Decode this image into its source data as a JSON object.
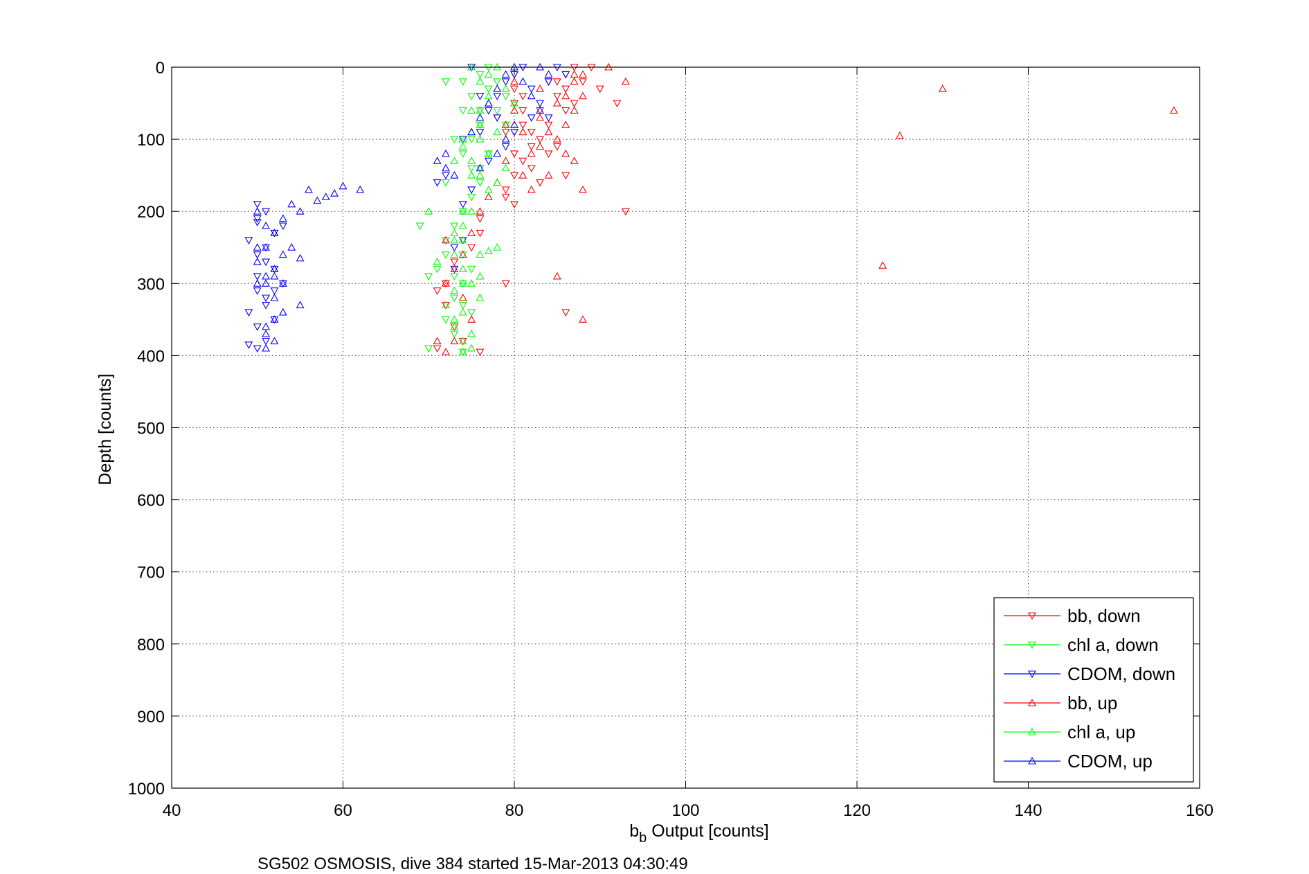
{
  "chart_data": {
    "type": "scatter",
    "title": "",
    "xlabel": {
      "main": "b",
      "sub": "b",
      "rest": " Output [counts]"
    },
    "ylabel": "Depth [counts]",
    "caption": "SG502 OSMOSIS, dive 384 started 15-Mar-2013 04:30:49",
    "xlim": [
      40,
      160
    ],
    "ylim": [
      0,
      1000
    ],
    "y_reversed": true,
    "grid": true,
    "legend_position": "bottom-right",
    "x_ticks": [
      "40",
      "60",
      "80",
      "100",
      "120",
      "140",
      "160"
    ],
    "y_ticks": [
      "0",
      "100",
      "200",
      "300",
      "400",
      "500",
      "600",
      "700",
      "800",
      "900",
      "1000"
    ],
    "series": [
      {
        "name": "bb, down",
        "color": "#ff0000",
        "marker": "triangle-down",
        "points": [
          [
            80,
            10
          ],
          [
            80,
            30
          ],
          [
            80,
            50
          ],
          [
            81,
            60
          ],
          [
            81,
            80
          ],
          [
            82,
            90
          ],
          [
            83,
            100
          ],
          [
            82,
            110
          ],
          [
            81,
            130
          ],
          [
            80,
            150
          ],
          [
            79,
            170
          ],
          [
            80,
            190
          ],
          [
            84,
            20
          ],
          [
            85,
            40
          ],
          [
            86,
            30
          ],
          [
            86,
            10
          ],
          [
            87,
            0
          ],
          [
            88,
            20
          ],
          [
            89,
            0
          ],
          [
            90,
            30
          ],
          [
            92,
            50
          ],
          [
            93,
            200
          ],
          [
            84,
            80
          ],
          [
            85,
            110
          ],
          [
            86,
            150
          ],
          [
            84,
            120
          ],
          [
            83,
            60
          ],
          [
            81,
            40
          ],
          [
            79,
            180
          ],
          [
            76,
            210
          ],
          [
            76,
            230
          ],
          [
            75,
            250
          ],
          [
            73,
            270
          ],
          [
            72,
            300
          ],
          [
            71,
            310
          ],
          [
            72,
            330
          ],
          [
            73,
            360
          ],
          [
            71,
            390
          ],
          [
            74,
            380
          ],
          [
            76,
            395
          ],
          [
            79,
            300
          ],
          [
            86,
            340
          ],
          [
            83,
            160
          ],
          [
            80,
            120
          ],
          [
            79,
            90
          ],
          [
            78,
            70
          ],
          [
            82,
            140
          ],
          [
            86,
            60
          ],
          [
            87,
            50
          ],
          [
            85,
            20
          ]
        ]
      },
      {
        "name": "chl a, down",
        "color": "#00ff00",
        "marker": "triangle-down",
        "points": [
          [
            74,
            20
          ],
          [
            75,
            40
          ],
          [
            74,
            60
          ],
          [
            76,
            10
          ],
          [
            77,
            30
          ],
          [
            77,
            0
          ],
          [
            78,
            20
          ],
          [
            79,
            40
          ],
          [
            76,
            80
          ],
          [
            75,
            100
          ],
          [
            74,
            120
          ],
          [
            75,
            140
          ],
          [
            76,
            160
          ],
          [
            75,
            180
          ],
          [
            74,
            200
          ],
          [
            73,
            220
          ],
          [
            72,
            240
          ],
          [
            72,
            260
          ],
          [
            71,
            280
          ],
          [
            70,
            290
          ],
          [
            74,
            300
          ],
          [
            73,
            320
          ],
          [
            72,
            350
          ],
          [
            73,
            370
          ],
          [
            70,
            390
          ],
          [
            74,
            395
          ],
          [
            69,
            220
          ],
          [
            72,
            20
          ],
          [
            78,
            60
          ],
          [
            79,
            80
          ],
          [
            77,
            120
          ],
          [
            76,
            140
          ],
          [
            74,
            260
          ],
          [
            75,
            280
          ],
          [
            73,
            290
          ],
          [
            75,
            340
          ],
          [
            74,
            330
          ],
          [
            76,
            60
          ],
          [
            73,
            100
          ],
          [
            72,
            160
          ]
        ]
      },
      {
        "name": "CDOM, down",
        "color": "#0000ff",
        "marker": "triangle-down",
        "points": [
          [
            50,
            190
          ],
          [
            51,
            200
          ],
          [
            50,
            210
          ],
          [
            49,
            240
          ],
          [
            50,
            260
          ],
          [
            51,
            270
          ],
          [
            50,
            290
          ],
          [
            50,
            310
          ],
          [
            51,
            330
          ],
          [
            49,
            340
          ],
          [
            50,
            360
          ],
          [
            51,
            380
          ],
          [
            49,
            385
          ],
          [
            50,
            390
          ],
          [
            52,
            280
          ],
          [
            53,
            300
          ],
          [
            52,
            230
          ],
          [
            51,
            250
          ],
          [
            53,
            220
          ],
          [
            52,
            310
          ],
          [
            51,
            320
          ],
          [
            71,
            160
          ],
          [
            72,
            150
          ],
          [
            74,
            100
          ],
          [
            76,
            90
          ],
          [
            78,
            70
          ],
          [
            78,
            40
          ],
          [
            79,
            20
          ],
          [
            80,
            10
          ],
          [
            81,
            0
          ],
          [
            82,
            30
          ],
          [
            83,
            50
          ],
          [
            84,
            20
          ],
          [
            85,
            0
          ],
          [
            75,
            0
          ],
          [
            76,
            40
          ],
          [
            77,
            60
          ],
          [
            80,
            90
          ],
          [
            82,
            70
          ],
          [
            79,
            110
          ],
          [
            77,
            130
          ],
          [
            75,
            170
          ],
          [
            74,
            190
          ],
          [
            73,
            250
          ],
          [
            74,
            240
          ],
          [
            73,
            280
          ],
          [
            84,
            70
          ],
          [
            86,
            10
          ],
          [
            50,
            215
          ],
          [
            52,
            350
          ]
        ]
      },
      {
        "name": "bb, up",
        "color": "#ff0000",
        "marker": "triangle-up",
        "points": [
          [
            91,
            0
          ],
          [
            93,
            20
          ],
          [
            87,
            10
          ],
          [
            88,
            40
          ],
          [
            87,
            60
          ],
          [
            86,
            80
          ],
          [
            85,
            100
          ],
          [
            86,
            120
          ],
          [
            87,
            130
          ],
          [
            84,
            150
          ],
          [
            82,
            170
          ],
          [
            88,
            170
          ],
          [
            85,
            290
          ],
          [
            88,
            350
          ],
          [
            123,
            275
          ],
          [
            125,
            95
          ],
          [
            130,
            30
          ],
          [
            157,
            60
          ],
          [
            80,
            60
          ],
          [
            81,
            90
          ],
          [
            83,
            110
          ],
          [
            79,
            130
          ],
          [
            78,
            160
          ],
          [
            77,
            180
          ],
          [
            76,
            200
          ],
          [
            75,
            230
          ],
          [
            74,
            260
          ],
          [
            73,
            280
          ],
          [
            72,
            300
          ],
          [
            74,
            320
          ],
          [
            75,
            350
          ],
          [
            73,
            380
          ],
          [
            72,
            395
          ],
          [
            71,
            380
          ],
          [
            72,
            240
          ],
          [
            80,
            20
          ],
          [
            83,
            30
          ],
          [
            85,
            50
          ],
          [
            82,
            120
          ],
          [
            86,
            40
          ],
          [
            87,
            20
          ],
          [
            88,
            10
          ],
          [
            84,
            90
          ],
          [
            83,
            70
          ],
          [
            81,
            150
          ],
          [
            79,
            80
          ]
        ]
      },
      {
        "name": "chl a, up",
        "color": "#00ff00",
        "marker": "triangle-up",
        "points": [
          [
            75,
            0
          ],
          [
            76,
            20
          ],
          [
            77,
            40
          ],
          [
            75,
            60
          ],
          [
            76,
            80
          ],
          [
            75,
            90
          ],
          [
            74,
            110
          ],
          [
            73,
            130
          ],
          [
            76,
            150
          ],
          [
            77,
            170
          ],
          [
            78,
            160
          ],
          [
            79,
            140
          ],
          [
            77,
            120
          ],
          [
            75,
            200
          ],
          [
            74,
            220
          ],
          [
            73,
            230
          ],
          [
            74,
            240
          ],
          [
            73,
            260
          ],
          [
            74,
            280
          ],
          [
            75,
            300
          ],
          [
            76,
            320
          ],
          [
            74,
            340
          ],
          [
            73,
            360
          ],
          [
            74,
            380
          ],
          [
            74,
            395
          ],
          [
            70,
            200
          ],
          [
            71,
            270
          ],
          [
            73,
            240
          ],
          [
            77,
            255
          ],
          [
            78,
            250
          ],
          [
            76,
            260
          ],
          [
            76,
            290
          ],
          [
            74,
            200
          ],
          [
            75,
            150
          ],
          [
            74,
            100
          ],
          [
            76,
            60
          ],
          [
            77,
            10
          ],
          [
            78,
            0
          ],
          [
            79,
            30
          ],
          [
            80,
            50
          ],
          [
            78,
            90
          ],
          [
            76,
            100
          ],
          [
            75,
            130
          ],
          [
            74,
            300
          ],
          [
            73,
            310
          ],
          [
            72,
            330
          ],
          [
            73,
            350
          ],
          [
            75,
            370
          ],
          [
            75,
            390
          ]
        ]
      },
      {
        "name": "CDOM, up",
        "color": "#0000ff",
        "marker": "triangle-up",
        "points": [
          [
            50,
            200
          ],
          [
            51,
            220
          ],
          [
            52,
            230
          ],
          [
            51,
            250
          ],
          [
            53,
            260
          ],
          [
            52,
            280
          ],
          [
            51,
            300
          ],
          [
            52,
            320
          ],
          [
            53,
            340
          ],
          [
            51,
            360
          ],
          [
            52,
            380
          ],
          [
            51,
            390
          ],
          [
            54,
            190
          ],
          [
            55,
            200
          ],
          [
            53,
            210
          ],
          [
            54,
            250
          ],
          [
            55,
            265
          ],
          [
            55,
            330
          ],
          [
            56,
            170
          ],
          [
            57,
            185
          ],
          [
            58,
            180
          ],
          [
            59,
            175
          ],
          [
            60,
            165
          ],
          [
            62,
            170
          ],
          [
            71,
            130
          ],
          [
            72,
            140
          ],
          [
            73,
            150
          ],
          [
            72,
            120
          ],
          [
            75,
            90
          ],
          [
            76,
            70
          ],
          [
            77,
            50
          ],
          [
            78,
            30
          ],
          [
            79,
            10
          ],
          [
            80,
            0
          ],
          [
            81,
            20
          ],
          [
            82,
            40
          ],
          [
            83,
            60
          ],
          [
            83,
            0
          ],
          [
            84,
            10
          ],
          [
            80,
            80
          ],
          [
            79,
            100
          ],
          [
            78,
            120
          ],
          [
            76,
            140
          ],
          [
            50,
            250
          ],
          [
            50,
            270
          ],
          [
            51,
            290
          ],
          [
            50,
            300
          ],
          [
            52,
            350
          ],
          [
            51,
            370
          ],
          [
            53,
            300
          ],
          [
            52,
            290
          ]
        ]
      }
    ]
  }
}
